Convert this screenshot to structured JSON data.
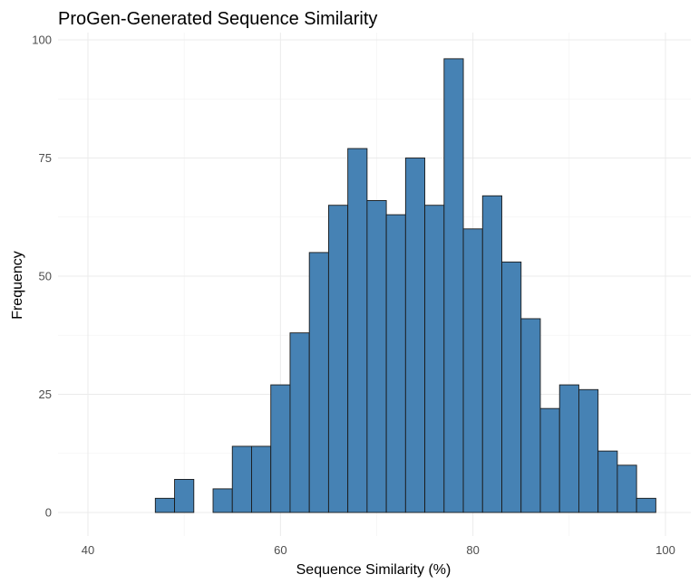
{
  "chart_data": {
    "type": "bar",
    "title": "ProGen-Generated Sequence Similarity",
    "xlabel": "Sequence Similarity (%)",
    "ylabel": "Frequency",
    "xlim": [
      39,
      101
    ],
    "ylim": [
      0,
      100
    ],
    "x_ticks": [
      40,
      60,
      80,
      100
    ],
    "y_ticks": [
      0,
      25,
      50,
      75,
      100
    ],
    "bin_width": 2,
    "bins": [
      {
        "center": 42,
        "value": 0
      },
      {
        "center": 44,
        "value": 0
      },
      {
        "center": 46,
        "value": 0
      },
      {
        "center": 48,
        "value": 3
      },
      {
        "center": 50,
        "value": 7
      },
      {
        "center": 52,
        "value": 0
      },
      {
        "center": 54,
        "value": 5
      },
      {
        "center": 56,
        "value": 14
      },
      {
        "center": 58,
        "value": 14
      },
      {
        "center": 60,
        "value": 27
      },
      {
        "center": 62,
        "value": 38
      },
      {
        "center": 64,
        "value": 55
      },
      {
        "center": 66,
        "value": 65
      },
      {
        "center": 68,
        "value": 77
      },
      {
        "center": 70,
        "value": 66
      },
      {
        "center": 72,
        "value": 63
      },
      {
        "center": 74,
        "value": 75
      },
      {
        "center": 76,
        "value": 65
      },
      {
        "center": 78,
        "value": 96
      },
      {
        "center": 80,
        "value": 60
      },
      {
        "center": 82,
        "value": 67
      },
      {
        "center": 84,
        "value": 53
      },
      {
        "center": 86,
        "value": 41
      },
      {
        "center": 88,
        "value": 22
      },
      {
        "center": 90,
        "value": 27
      },
      {
        "center": 92,
        "value": 26
      },
      {
        "center": 94,
        "value": 13
      },
      {
        "center": 96,
        "value": 10
      },
      {
        "center": 98,
        "value": 3
      }
    ],
    "grid": true,
    "colors": {
      "bar_fill": "#4682b4",
      "bar_stroke": "#1a1a1a",
      "grid": "#ebebeb"
    }
  }
}
